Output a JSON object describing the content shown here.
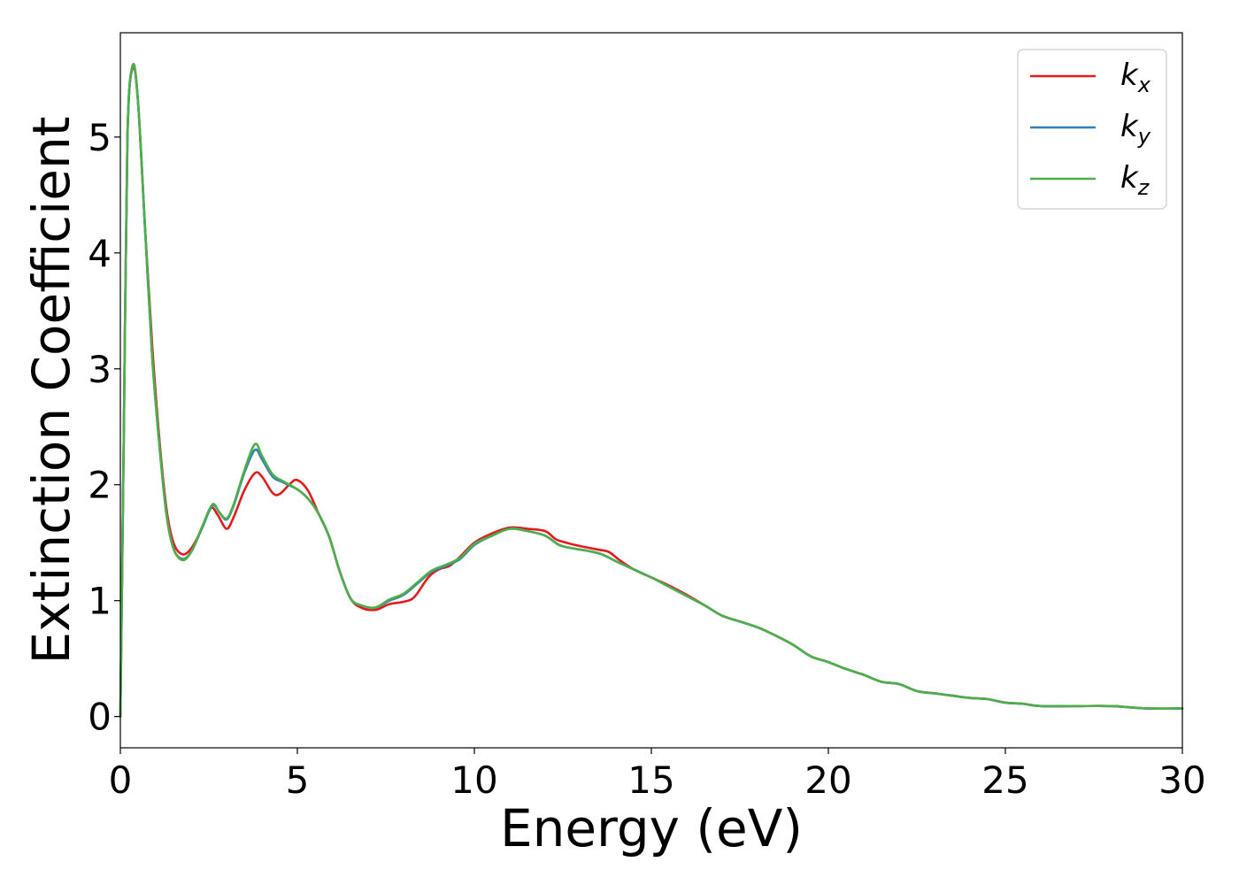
{
  "chart_data": {
    "type": "line",
    "title": "",
    "xlabel": "Energy (eV)",
    "ylabel": "Extinction Coefficient",
    "xlim": [
      0,
      30
    ],
    "ylim": [
      -0.27,
      5.9
    ],
    "x_ticks": [
      "0",
      "5",
      "10",
      "15",
      "20",
      "25",
      "30"
    ],
    "y_ticks": [
      "0",
      "1",
      "2",
      "3",
      "4",
      "5"
    ],
    "grid": false,
    "legend_position": "top-right",
    "series": [
      {
        "name": "k_x",
        "label_base": "k",
        "label_sub": "x",
        "color": "#e41a1c",
        "points": [
          [
            0.0,
            0.0
          ],
          [
            0.1,
            2.5
          ],
          [
            0.2,
            5.0
          ],
          [
            0.35,
            5.6
          ],
          [
            0.5,
            5.3
          ],
          [
            0.7,
            4.2
          ],
          [
            0.9,
            3.2
          ],
          [
            1.1,
            2.4
          ],
          [
            1.3,
            1.8
          ],
          [
            1.5,
            1.5
          ],
          [
            1.75,
            1.4
          ],
          [
            2.0,
            1.45
          ],
          [
            2.3,
            1.62
          ],
          [
            2.55,
            1.8
          ],
          [
            2.75,
            1.74
          ],
          [
            3.0,
            1.62
          ],
          [
            3.2,
            1.72
          ],
          [
            3.5,
            1.95
          ],
          [
            3.8,
            2.1
          ],
          [
            4.0,
            2.07
          ],
          [
            4.3,
            1.93
          ],
          [
            4.5,
            1.92
          ],
          [
            4.8,
            2.01
          ],
          [
            5.0,
            2.04
          ],
          [
            5.3,
            1.95
          ],
          [
            5.6,
            1.75
          ],
          [
            5.9,
            1.55
          ],
          [
            6.2,
            1.25
          ],
          [
            6.5,
            1.02
          ],
          [
            6.8,
            0.94
          ],
          [
            7.2,
            0.92
          ],
          [
            7.6,
            0.97
          ],
          [
            8.0,
            0.99
          ],
          [
            8.3,
            1.03
          ],
          [
            8.7,
            1.2
          ],
          [
            9.0,
            1.27
          ],
          [
            9.3,
            1.3
          ],
          [
            9.6,
            1.38
          ],
          [
            10.0,
            1.5
          ],
          [
            10.5,
            1.58
          ],
          [
            11.0,
            1.63
          ],
          [
            11.5,
            1.62
          ],
          [
            12.0,
            1.6
          ],
          [
            12.3,
            1.53
          ],
          [
            12.6,
            1.5
          ],
          [
            13.0,
            1.47
          ],
          [
            13.5,
            1.44
          ],
          [
            13.8,
            1.42
          ],
          [
            14.1,
            1.35
          ],
          [
            14.5,
            1.27
          ],
          [
            15.0,
            1.2
          ],
          [
            15.5,
            1.13
          ],
          [
            16.0,
            1.05
          ],
          [
            16.5,
            0.96
          ],
          [
            17.0,
            0.87
          ],
          [
            17.5,
            0.82
          ],
          [
            18.0,
            0.77
          ],
          [
            18.5,
            0.7
          ],
          [
            19.0,
            0.62
          ],
          [
            19.5,
            0.52
          ],
          [
            20.0,
            0.47
          ],
          [
            20.5,
            0.41
          ],
          [
            21.0,
            0.36
          ],
          [
            21.5,
            0.3
          ],
          [
            22.0,
            0.28
          ],
          [
            22.5,
            0.22
          ],
          [
            23.0,
            0.2
          ],
          [
            23.5,
            0.18
          ],
          [
            24.0,
            0.16
          ],
          [
            24.5,
            0.15
          ],
          [
            25.0,
            0.12
          ],
          [
            25.5,
            0.11
          ],
          [
            26.0,
            0.09
          ],
          [
            27.0,
            0.09
          ],
          [
            28.0,
            0.09
          ],
          [
            29.0,
            0.07
          ],
          [
            30.0,
            0.07
          ]
        ]
      },
      {
        "name": "k_y",
        "label_base": "k",
        "label_sub": "y",
        "color": "#377eb8",
        "points": [
          [
            0.0,
            0.0
          ],
          [
            0.1,
            2.5
          ],
          [
            0.2,
            5.0
          ],
          [
            0.35,
            5.62
          ],
          [
            0.5,
            5.3
          ],
          [
            0.7,
            4.2
          ],
          [
            0.9,
            3.1
          ],
          [
            1.1,
            2.35
          ],
          [
            1.3,
            1.75
          ],
          [
            1.5,
            1.45
          ],
          [
            1.75,
            1.36
          ],
          [
            2.0,
            1.42
          ],
          [
            2.3,
            1.62
          ],
          [
            2.6,
            1.82
          ],
          [
            2.8,
            1.76
          ],
          [
            3.0,
            1.7
          ],
          [
            3.2,
            1.82
          ],
          [
            3.5,
            2.1
          ],
          [
            3.8,
            2.3
          ],
          [
            4.0,
            2.22
          ],
          [
            4.3,
            2.07
          ],
          [
            4.6,
            2.02
          ],
          [
            5.0,
            1.96
          ],
          [
            5.3,
            1.88
          ],
          [
            5.6,
            1.75
          ],
          [
            5.9,
            1.55
          ],
          [
            6.2,
            1.25
          ],
          [
            6.5,
            1.02
          ],
          [
            6.8,
            0.96
          ],
          [
            7.2,
            0.94
          ],
          [
            7.6,
            1.0
          ],
          [
            8.0,
            1.05
          ],
          [
            8.4,
            1.15
          ],
          [
            8.8,
            1.25
          ],
          [
            9.2,
            1.3
          ],
          [
            9.6,
            1.36
          ],
          [
            10.0,
            1.48
          ],
          [
            10.5,
            1.56
          ],
          [
            11.0,
            1.62
          ],
          [
            11.5,
            1.6
          ],
          [
            12.0,
            1.56
          ],
          [
            12.4,
            1.48
          ],
          [
            12.8,
            1.45
          ],
          [
            13.2,
            1.43
          ],
          [
            13.6,
            1.4
          ],
          [
            14.0,
            1.34
          ],
          [
            14.5,
            1.27
          ],
          [
            15.0,
            1.2
          ],
          [
            15.5,
            1.12
          ],
          [
            16.0,
            1.04
          ],
          [
            16.5,
            0.96
          ],
          [
            17.0,
            0.87
          ],
          [
            17.5,
            0.82
          ],
          [
            18.0,
            0.77
          ],
          [
            18.5,
            0.7
          ],
          [
            19.0,
            0.62
          ],
          [
            19.5,
            0.52
          ],
          [
            20.0,
            0.47
          ],
          [
            20.5,
            0.41
          ],
          [
            21.0,
            0.36
          ],
          [
            21.5,
            0.3
          ],
          [
            22.0,
            0.28
          ],
          [
            22.5,
            0.22
          ],
          [
            23.0,
            0.2
          ],
          [
            23.5,
            0.18
          ],
          [
            24.0,
            0.16
          ],
          [
            24.5,
            0.15
          ],
          [
            25.0,
            0.12
          ],
          [
            25.5,
            0.11
          ],
          [
            26.0,
            0.09
          ],
          [
            27.0,
            0.09
          ],
          [
            28.0,
            0.09
          ],
          [
            29.0,
            0.07
          ],
          [
            30.0,
            0.07
          ]
        ]
      },
      {
        "name": "k_z",
        "label_base": "k",
        "label_sub": "z",
        "color": "#4daf4a",
        "points": [
          [
            0.0,
            0.0
          ],
          [
            0.1,
            2.5
          ],
          [
            0.2,
            5.0
          ],
          [
            0.35,
            5.62
          ],
          [
            0.5,
            5.3
          ],
          [
            0.7,
            4.2
          ],
          [
            0.9,
            3.1
          ],
          [
            1.1,
            2.35
          ],
          [
            1.3,
            1.75
          ],
          [
            1.5,
            1.45
          ],
          [
            1.75,
            1.35
          ],
          [
            2.0,
            1.42
          ],
          [
            2.3,
            1.63
          ],
          [
            2.6,
            1.83
          ],
          [
            2.8,
            1.76
          ],
          [
            3.0,
            1.71
          ],
          [
            3.2,
            1.83
          ],
          [
            3.5,
            2.12
          ],
          [
            3.8,
            2.35
          ],
          [
            4.0,
            2.25
          ],
          [
            4.3,
            2.09
          ],
          [
            4.6,
            2.03
          ],
          [
            5.0,
            1.96
          ],
          [
            5.3,
            1.88
          ],
          [
            5.6,
            1.75
          ],
          [
            5.9,
            1.55
          ],
          [
            6.2,
            1.25
          ],
          [
            6.5,
            1.02
          ],
          [
            6.8,
            0.96
          ],
          [
            7.2,
            0.94
          ],
          [
            7.6,
            1.01
          ],
          [
            8.0,
            1.06
          ],
          [
            8.4,
            1.16
          ],
          [
            8.8,
            1.26
          ],
          [
            9.2,
            1.31
          ],
          [
            9.6,
            1.37
          ],
          [
            10.0,
            1.49
          ],
          [
            10.5,
            1.56
          ],
          [
            11.0,
            1.62
          ],
          [
            11.5,
            1.6
          ],
          [
            12.0,
            1.56
          ],
          [
            12.4,
            1.48
          ],
          [
            12.8,
            1.45
          ],
          [
            13.2,
            1.43
          ],
          [
            13.6,
            1.4
          ],
          [
            14.0,
            1.34
          ],
          [
            14.5,
            1.27
          ],
          [
            15.0,
            1.2
          ],
          [
            15.5,
            1.12
          ],
          [
            16.0,
            1.04
          ],
          [
            16.5,
            0.96
          ],
          [
            17.0,
            0.87
          ],
          [
            17.5,
            0.82
          ],
          [
            18.0,
            0.77
          ],
          [
            18.5,
            0.7
          ],
          [
            19.0,
            0.62
          ],
          [
            19.5,
            0.52
          ],
          [
            20.0,
            0.47
          ],
          [
            20.5,
            0.41
          ],
          [
            21.0,
            0.36
          ],
          [
            21.5,
            0.3
          ],
          [
            22.0,
            0.28
          ],
          [
            22.5,
            0.22
          ],
          [
            23.0,
            0.2
          ],
          [
            23.5,
            0.18
          ],
          [
            24.0,
            0.16
          ],
          [
            24.5,
            0.15
          ],
          [
            25.0,
            0.12
          ],
          [
            25.5,
            0.11
          ],
          [
            26.0,
            0.09
          ],
          [
            27.0,
            0.09
          ],
          [
            28.0,
            0.09
          ],
          [
            29.0,
            0.07
          ],
          [
            30.0,
            0.07
          ]
        ]
      }
    ]
  }
}
